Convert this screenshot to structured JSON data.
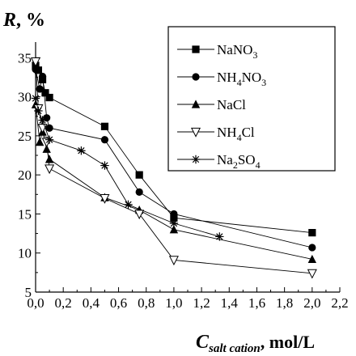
{
  "chart_data": {
    "type": "line",
    "ylabel_main": "R",
    "ylabel_unit": "%",
    "xlabel_main": "C",
    "xlabel_sub": "salt cation",
    "xlabel_tail": ", mol/L",
    "xlim": [
      0,
      2.2
    ],
    "ylim": [
      5,
      37
    ],
    "x_ticks": [
      "0,0",
      "0,2",
      "0,4",
      "0,6",
      "0,8",
      "1,0",
      "1,2",
      "1,4",
      "1,6",
      "1,8",
      "2,0",
      "2,2"
    ],
    "x_tick_values": [
      0,
      0.2,
      0.4,
      0.6,
      0.8,
      1.0,
      1.2,
      1.4,
      1.6,
      1.8,
      2.0,
      2.2
    ],
    "y_ticks": [
      "5",
      "10",
      "15",
      "20",
      "25",
      "30",
      "35"
    ],
    "y_tick_values": [
      5,
      10,
      15,
      20,
      25,
      30,
      35
    ],
    "grid": false,
    "legend_position": "top-right",
    "series": [
      {
        "name": "NaNO3",
        "legend": {
          "base": "NaNO",
          "sub1": "",
          "mid": "",
          "sub2": "3"
        },
        "marker": "square-filled",
        "x": [
          0.0,
          0.02,
          0.05,
          0.07,
          0.1,
          0.5,
          0.75,
          1.0,
          2.0
        ],
        "y": [
          34,
          33.4,
          32.2,
          30.5,
          29.9,
          26.2,
          20.0,
          14.5,
          12.6
        ]
      },
      {
        "name": "NH4NO3",
        "legend": {
          "base": "NH",
          "sub1": "4",
          "mid": "NO",
          "sub2": "3"
        },
        "marker": "circle-filled",
        "x": [
          0.0,
          0.03,
          0.05,
          0.08,
          0.1,
          0.5,
          0.75,
          1.0,
          2.0
        ],
        "y": [
          33.5,
          31.0,
          32.6,
          27.3,
          26.0,
          24.5,
          17.8,
          15.0,
          10.7
        ]
      },
      {
        "name": "NaCl",
        "legend": {
          "base": "NaCl",
          "sub1": "",
          "mid": "",
          "sub2": ""
        },
        "marker": "triangle-filled",
        "x": [
          0.0,
          0.03,
          0.05,
          0.08,
          0.1,
          0.5,
          0.75,
          1.0,
          2.0
        ],
        "y": [
          29.0,
          24.2,
          25.5,
          23.3,
          22.0,
          17.1,
          15.5,
          13.0,
          9.2
        ]
      },
      {
        "name": "NH4Cl",
        "legend": {
          "base": "NH",
          "sub1": "4",
          "mid": "Cl",
          "sub2": ""
        },
        "marker": "triangle-down-open",
        "x": [
          0.0,
          0.02,
          0.05,
          0.08,
          0.1,
          0.5,
          0.75,
          1.0,
          2.0
        ],
        "y": [
          34.5,
          28.5,
          26.0,
          24.2,
          20.8,
          17.0,
          15.0,
          9.1,
          7.4
        ]
      },
      {
        "name": "Na2SO4",
        "legend": {
          "base": "Na",
          "sub1": "2",
          "mid": "SO",
          "sub2": "4"
        },
        "marker": "asterisk",
        "x": [
          0.0,
          0.02,
          0.05,
          0.1,
          0.33,
          0.5,
          0.67,
          1.0,
          1.33
        ],
        "y": [
          29.8,
          28.2,
          27.0,
          24.5,
          23.1,
          21.2,
          16.2,
          13.8,
          12.1
        ]
      }
    ]
  }
}
